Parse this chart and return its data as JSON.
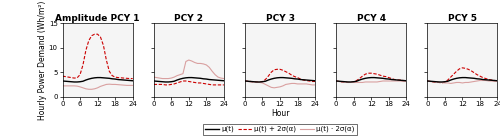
{
  "titles": [
    "Amplitude PCY 1",
    "PCY 2",
    "PCY 3",
    "PCY 4",
    "PCY 5"
  ],
  "hours": [
    0,
    1,
    2,
    3,
    4,
    5,
    6,
    7,
    8,
    9,
    10,
    11,
    12,
    13,
    14,
    15,
    16,
    17,
    18,
    19,
    20,
    21,
    22,
    23,
    24
  ],
  "mean": [
    3.2,
    3.15,
    3.1,
    3.05,
    3.0,
    3.0,
    3.05,
    3.15,
    3.4,
    3.6,
    3.75,
    3.85,
    3.9,
    3.9,
    3.85,
    3.8,
    3.75,
    3.65,
    3.6,
    3.5,
    3.45,
    3.4,
    3.35,
    3.3,
    3.25
  ],
  "pcy1_pos": [
    4.2,
    4.1,
    4.0,
    3.9,
    3.8,
    3.85,
    4.5,
    6.5,
    9.5,
    11.5,
    12.5,
    12.8,
    12.8,
    12.2,
    10.5,
    7.5,
    5.2,
    4.3,
    4.0,
    3.9,
    3.85,
    3.8,
    3.75,
    3.7,
    3.7
  ],
  "pcy1_neg": [
    2.2,
    2.2,
    2.2,
    2.2,
    2.2,
    2.15,
    2.0,
    1.8,
    1.6,
    1.5,
    1.5,
    1.6,
    1.8,
    2.1,
    2.3,
    2.5,
    2.55,
    2.5,
    2.5,
    2.45,
    2.4,
    2.35,
    2.3,
    2.3,
    2.3
  ],
  "pcy2_pos": [
    2.5,
    2.5,
    2.5,
    2.5,
    2.4,
    2.4,
    2.5,
    2.6,
    2.8,
    3.0,
    3.2,
    3.2,
    3.1,
    3.0,
    2.9,
    2.8,
    2.8,
    2.7,
    2.6,
    2.5,
    2.4,
    2.4,
    2.4,
    2.4,
    2.4
  ],
  "pcy2_neg": [
    4.0,
    3.9,
    3.8,
    3.7,
    3.7,
    3.7,
    3.8,
    4.0,
    4.3,
    4.5,
    4.7,
    7.2,
    7.5,
    7.3,
    7.0,
    6.8,
    6.8,
    6.7,
    6.5,
    6.0,
    5.2,
    4.5,
    4.0,
    3.8,
    3.7
  ],
  "pcy3_pos": [
    3.2,
    3.15,
    3.1,
    3.0,
    3.0,
    2.9,
    3.1,
    3.5,
    4.2,
    5.0,
    5.5,
    5.6,
    5.6,
    5.4,
    5.1,
    4.8,
    4.4,
    4.1,
    3.9,
    3.6,
    3.4,
    3.3,
    3.2,
    3.1,
    3.1
  ],
  "pcy3_neg": [
    3.2,
    3.1,
    3.0,
    3.0,
    2.9,
    2.9,
    2.8,
    2.5,
    2.2,
    1.9,
    1.8,
    1.9,
    2.0,
    2.2,
    2.5,
    2.6,
    2.7,
    2.7,
    2.6,
    2.6,
    2.6,
    2.6,
    2.5,
    2.4,
    2.4
  ],
  "pcy4_pos": [
    3.2,
    3.1,
    3.0,
    3.0,
    2.9,
    2.9,
    3.0,
    3.3,
    3.7,
    4.2,
    4.6,
    4.8,
    4.8,
    4.7,
    4.6,
    4.4,
    4.2,
    4.1,
    3.9,
    3.7,
    3.5,
    3.4,
    3.4,
    3.3,
    3.25
  ],
  "pcy4_neg": [
    3.2,
    3.1,
    3.0,
    3.0,
    2.9,
    2.9,
    2.9,
    2.9,
    2.9,
    2.9,
    3.0,
    3.0,
    3.0,
    3.0,
    3.0,
    3.1,
    3.2,
    3.2,
    3.2,
    3.2,
    3.2,
    3.2,
    3.2,
    3.1,
    3.1
  ],
  "pcy5_pos": [
    3.2,
    3.1,
    3.0,
    2.9,
    2.9,
    2.8,
    3.0,
    3.4,
    4.0,
    4.6,
    5.2,
    5.7,
    5.9,
    5.8,
    5.6,
    5.3,
    4.9,
    4.5,
    4.2,
    3.9,
    3.7,
    3.5,
    3.4,
    3.3,
    3.25
  ],
  "pcy5_neg": [
    3.2,
    3.1,
    3.0,
    3.0,
    2.9,
    2.9,
    2.8,
    2.8,
    2.7,
    2.8,
    2.9,
    2.9,
    2.8,
    2.9,
    2.9,
    3.0,
    3.1,
    3.2,
    3.3,
    3.3,
    3.3,
    3.2,
    3.2,
    3.1,
    3.1
  ],
  "ylim": [
    0,
    15
  ],
  "yticks": [
    0,
    5,
    10,
    15
  ],
  "xticks": [
    0,
    6,
    12,
    18,
    24
  ],
  "ylabel": "Hourly Power Demand (Wh/m²)",
  "xlabel": "Hour",
  "mean_color": "#000000",
  "pos_color": "#cc0000",
  "neg_color": "#d9a0a0",
  "legend_label_mean": "μ(t)",
  "legend_label_pos": "μ(t) + 2σ(α)",
  "legend_label_neg": "μ(t) · 2σ(α)",
  "title_fontsize": 6.5,
  "axis_fontsize": 5.5,
  "tick_fontsize": 5.0,
  "legend_fontsize": 5.0
}
